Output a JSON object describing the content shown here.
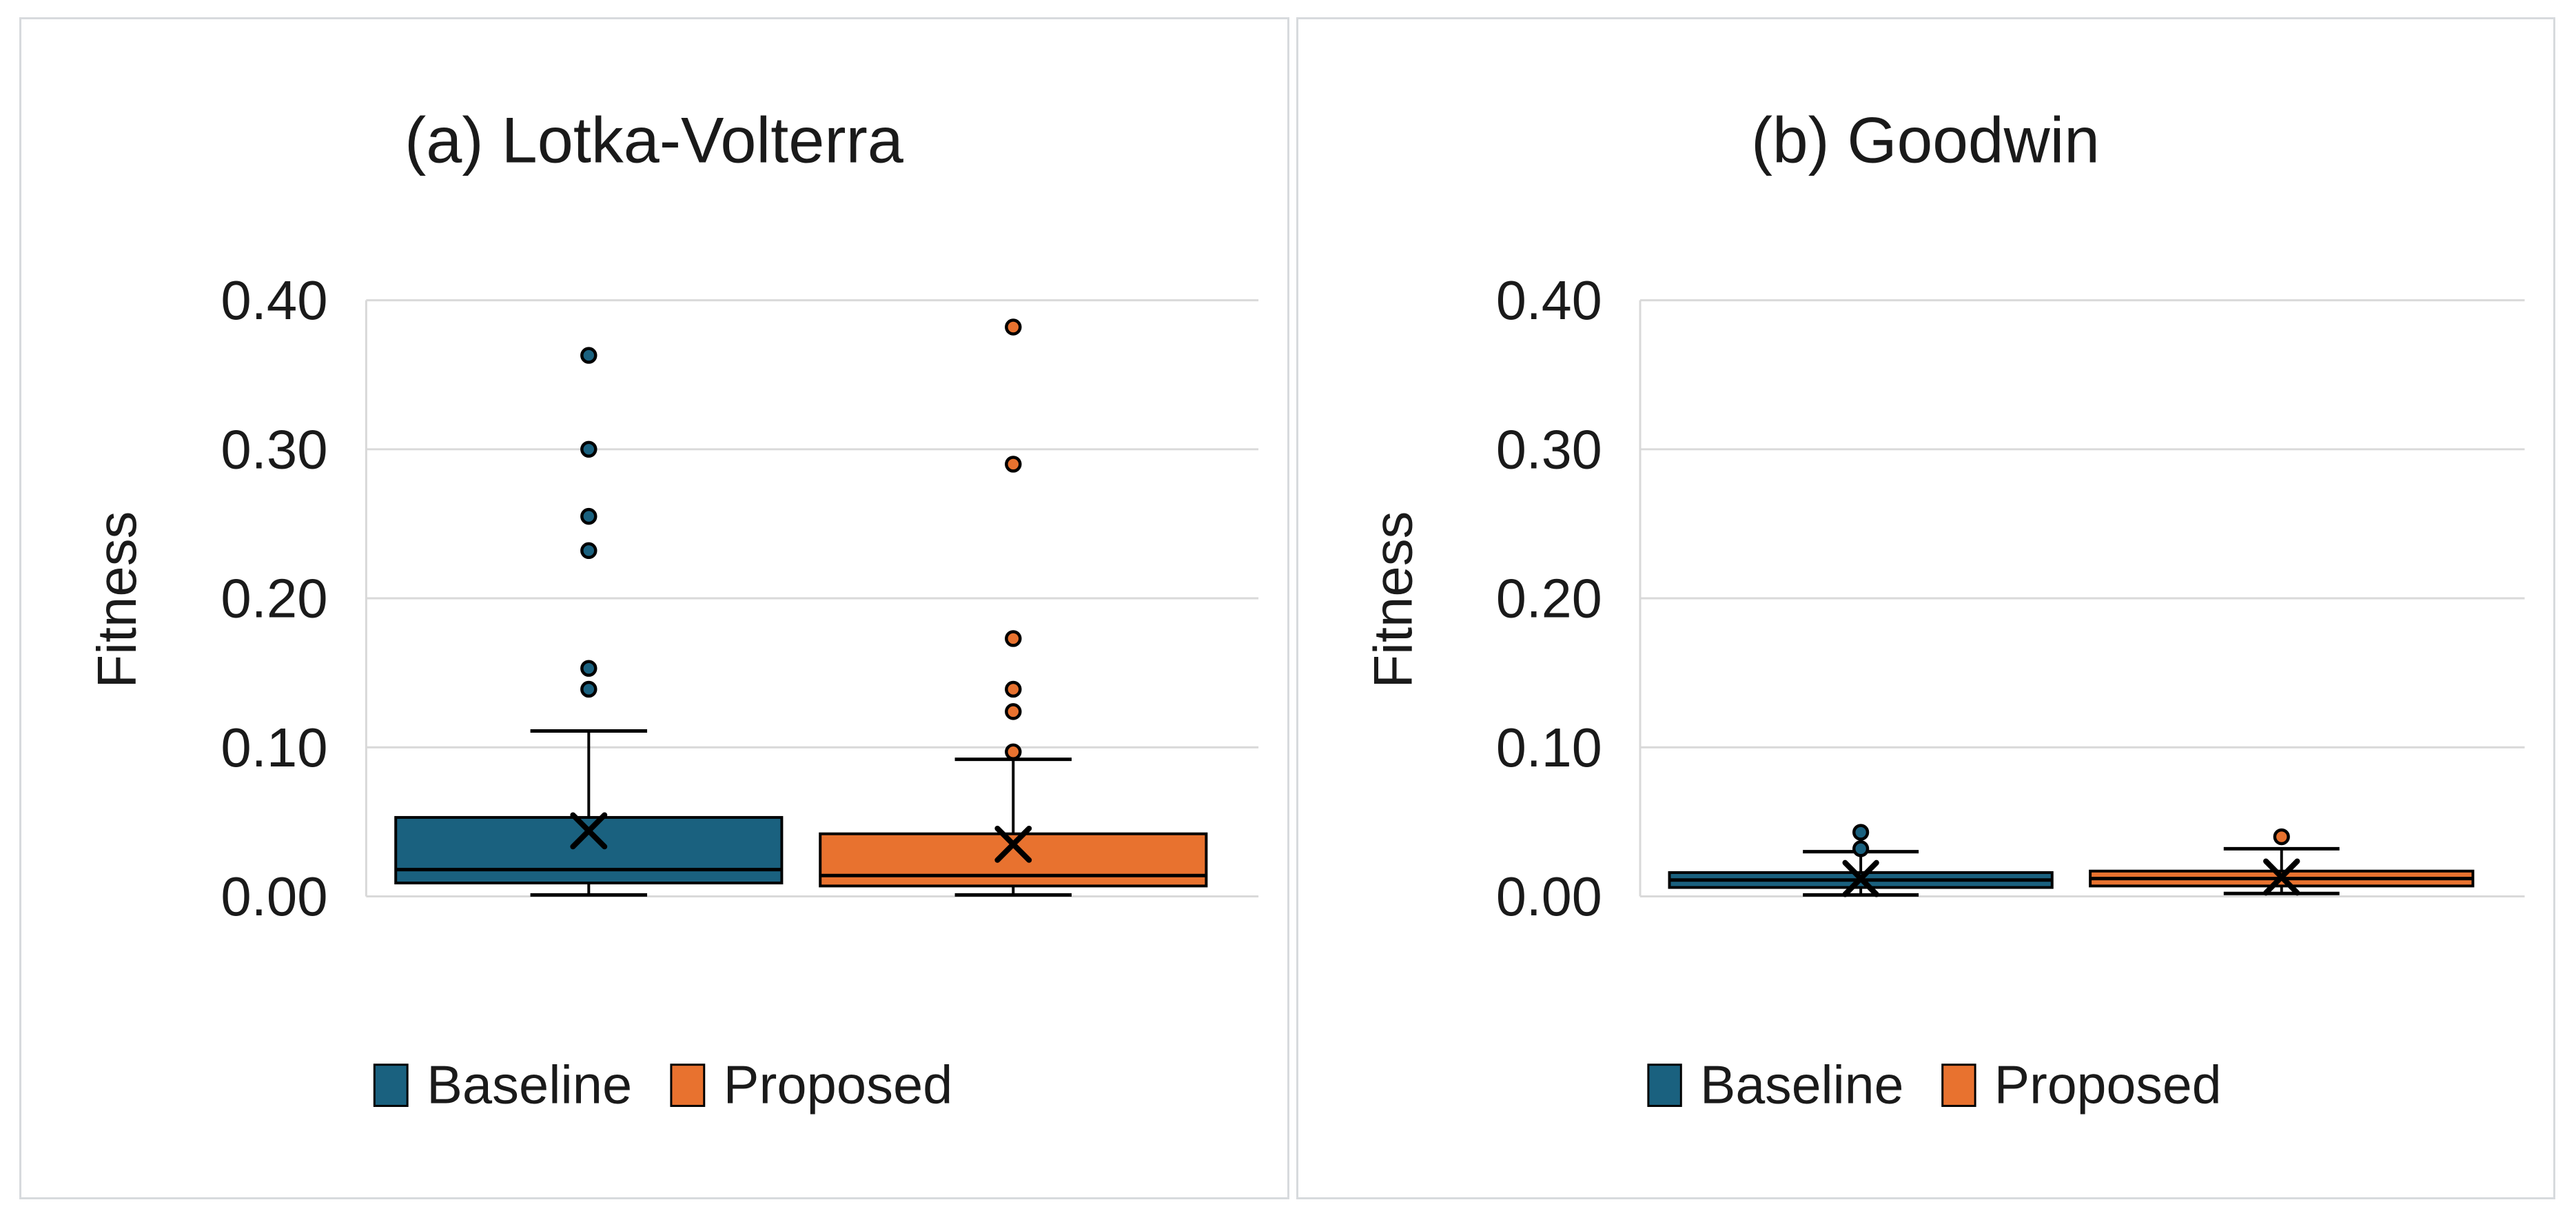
{
  "figure": {
    "background": "#ffffff",
    "panel_border_color": "#d7dadd",
    "text_color": "#1a1a1a",
    "gridline_color": "#d9d9d9",
    "box_outline_color": "#000000"
  },
  "colors": {
    "baseline": "#1a617f",
    "proposed": "#e8722f"
  },
  "legend": {
    "items": [
      {
        "label": "Baseline",
        "color_key": "baseline"
      },
      {
        "label": "Proposed",
        "color_key": "proposed"
      }
    ]
  },
  "chart_data": [
    {
      "type": "boxplot",
      "title": "(a) Lotka-Volterra",
      "ylabel": "Fitness",
      "ylim": [
        0.0,
        0.4
      ],
      "yticks": [
        0.0,
        0.1,
        0.2,
        0.3,
        0.4
      ],
      "ytick_labels": [
        "0.00",
        "0.10",
        "0.20",
        "0.30",
        "0.40"
      ],
      "grid": "horizontal",
      "legend_position": "bottom",
      "categories": [
        "Baseline",
        "Proposed"
      ],
      "series": [
        {
          "name": "Baseline",
          "color_key": "baseline",
          "whislo": 0.001,
          "q1": 0.009,
          "med": 0.018,
          "q3": 0.053,
          "whishi": 0.111,
          "mean": 0.044,
          "outliers": [
            0.139,
            0.153,
            0.232,
            0.255,
            0.3,
            0.363
          ]
        },
        {
          "name": "Proposed",
          "color_key": "proposed",
          "whislo": 0.001,
          "q1": 0.007,
          "med": 0.014,
          "q3": 0.042,
          "whishi": 0.092,
          "mean": 0.035,
          "outliers": [
            0.097,
            0.124,
            0.139,
            0.173,
            0.29,
            0.382
          ]
        }
      ]
    },
    {
      "type": "boxplot",
      "title": "(b) Goodwin",
      "ylabel": "Fitness",
      "ylim": [
        0.0,
        0.4
      ],
      "yticks": [
        0.0,
        0.1,
        0.2,
        0.3,
        0.4
      ],
      "ytick_labels": [
        "0.00",
        "0.10",
        "0.20",
        "0.30",
        "0.40"
      ],
      "grid": "horizontal",
      "legend_position": "bottom",
      "categories": [
        "Baseline",
        "Proposed"
      ],
      "series": [
        {
          "name": "Baseline",
          "color_key": "baseline",
          "whislo": 0.001,
          "q1": 0.006,
          "med": 0.011,
          "q3": 0.016,
          "whishi": 0.03,
          "mean": 0.012,
          "outliers": [
            0.032,
            0.043
          ]
        },
        {
          "name": "Proposed",
          "color_key": "proposed",
          "whislo": 0.002,
          "q1": 0.007,
          "med": 0.012,
          "q3": 0.017,
          "whishi": 0.032,
          "mean": 0.013,
          "outliers": [
            0.04
          ]
        }
      ]
    }
  ]
}
